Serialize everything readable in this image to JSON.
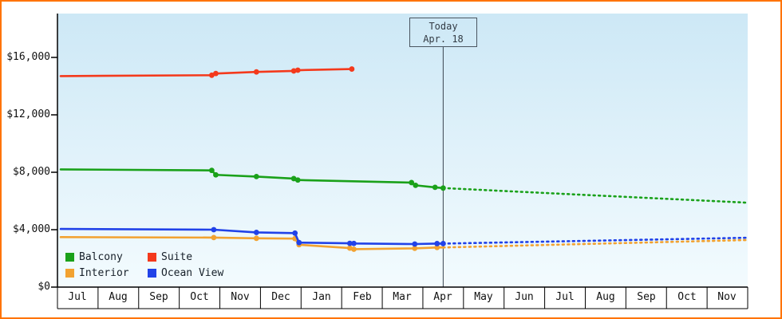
{
  "page": {
    "background": "#ffffff",
    "frame_border_color": "#ff7300"
  },
  "chart_data": {
    "type": "line",
    "title": "",
    "plot": {
      "bg_top": "#cde8f6",
      "bg_bottom": "#f3fbfe",
      "axis_color": "#000000"
    },
    "y_axis": {
      "ticks": [
        0,
        4000,
        8000,
        12000,
        16000
      ],
      "tick_labels": [
        "$0",
        "$4,000",
        "$8,000",
        "$12,000",
        "$16,000"
      ],
      "max_value": 19000
    },
    "x_axis": {
      "months": [
        "Jul",
        "Aug",
        "Sep",
        "Oct",
        "Nov",
        "Dec",
        "Jan",
        "Feb",
        "Mar",
        "Apr",
        "May",
        "Jun",
        "Jul",
        "Aug",
        "Sep",
        "Oct",
        "Nov"
      ]
    },
    "today": {
      "line1": "Today",
      "line2": "Apr. 18",
      "x_month_units": 9.5,
      "line_color": "#3a4450"
    },
    "series": [
      {
        "name": "Balcony",
        "color": "#1aa11a",
        "solid": [
          [
            0.08,
            8200
          ],
          [
            3.8,
            8130
          ],
          [
            3.9,
            7820
          ],
          [
            4.9,
            7700
          ],
          [
            5.82,
            7560
          ],
          [
            5.92,
            7460
          ],
          [
            8.72,
            7280
          ],
          [
            8.82,
            7090
          ],
          [
            9.3,
            6950
          ],
          [
            9.5,
            6900
          ]
        ],
        "markers": [
          [
            3.8,
            8130
          ],
          [
            3.9,
            7820
          ],
          [
            4.9,
            7700
          ],
          [
            5.82,
            7560
          ],
          [
            5.92,
            7460
          ],
          [
            8.72,
            7280
          ],
          [
            8.82,
            7090
          ],
          [
            9.3,
            6950
          ],
          [
            9.5,
            6900
          ]
        ],
        "dashed": [
          [
            9.5,
            6900
          ],
          [
            13,
            6420
          ],
          [
            17,
            5880
          ]
        ]
      },
      {
        "name": "Suite",
        "color": "#f4391c",
        "solid": [
          [
            0.08,
            14700
          ],
          [
            3.8,
            14760
          ],
          [
            3.9,
            14880
          ],
          [
            4.9,
            14990
          ],
          [
            5.82,
            15060
          ],
          [
            5.92,
            15110
          ],
          [
            7.25,
            15190
          ]
        ],
        "markers": [
          [
            3.8,
            14760
          ],
          [
            3.9,
            14880
          ],
          [
            4.9,
            14990
          ],
          [
            5.82,
            15060
          ],
          [
            5.92,
            15110
          ],
          [
            7.25,
            15190
          ]
        ],
        "dashed": []
      },
      {
        "name": "Interior",
        "color": "#f2a231",
        "solid": [
          [
            0.08,
            3480
          ],
          [
            3.85,
            3450
          ],
          [
            4.9,
            3400
          ],
          [
            5.85,
            3380
          ],
          [
            5.95,
            2950
          ],
          [
            7.2,
            2720
          ],
          [
            7.3,
            2640
          ],
          [
            8.8,
            2700
          ],
          [
            9.35,
            2760
          ],
          [
            9.5,
            2760
          ]
        ],
        "markers": [
          [
            3.85,
            3450
          ],
          [
            4.9,
            3400
          ],
          [
            5.85,
            3380
          ],
          [
            5.95,
            2950
          ],
          [
            7.2,
            2720
          ],
          [
            7.3,
            2640
          ],
          [
            8.8,
            2700
          ],
          [
            9.35,
            2760
          ]
        ],
        "dashed": [
          [
            9.5,
            2760
          ],
          [
            17,
            3280
          ]
        ]
      },
      {
        "name": "Ocean View",
        "color": "#2142e8",
        "solid": [
          [
            0.08,
            4050
          ],
          [
            3.85,
            4000
          ],
          [
            4.9,
            3810
          ],
          [
            5.85,
            3760
          ],
          [
            5.95,
            3100
          ],
          [
            7.2,
            3050
          ],
          [
            7.3,
            3040
          ],
          [
            8.8,
            3000
          ],
          [
            9.35,
            3030
          ],
          [
            9.5,
            3030
          ]
        ],
        "markers": [
          [
            3.85,
            4000
          ],
          [
            4.9,
            3810
          ],
          [
            5.85,
            3760
          ],
          [
            5.95,
            3100
          ],
          [
            7.2,
            3050
          ],
          [
            7.3,
            3040
          ],
          [
            8.8,
            3000
          ],
          [
            9.35,
            3030
          ],
          [
            9.5,
            3030
          ]
        ],
        "dashed": [
          [
            9.5,
            3030
          ],
          [
            17,
            3440
          ]
        ]
      }
    ],
    "legend": {
      "rows": [
        [
          "Balcony",
          "Suite"
        ],
        [
          "Interior",
          "Ocean View"
        ]
      ]
    }
  }
}
